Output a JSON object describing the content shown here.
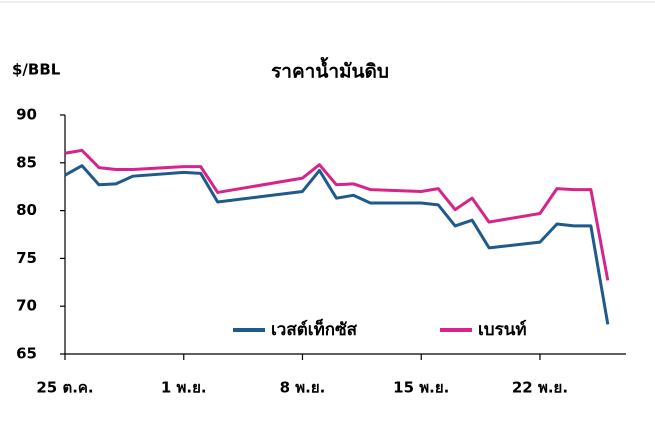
{
  "chart_data": {
    "type": "line",
    "title": "ราคาน้ำมันดิบ",
    "y_label": "$/BBL",
    "x": [
      0,
      1,
      2,
      3,
      4,
      7,
      8,
      9,
      14,
      15,
      16,
      17,
      18,
      21,
      22,
      23,
      24,
      25,
      28,
      29,
      30,
      31,
      32
    ],
    "xlim": [
      0,
      32.6
    ],
    "xticks": [
      {
        "value": 0,
        "label": "25 ต.ค."
      },
      {
        "value": 7,
        "label": "1 พ.ย."
      },
      {
        "value": 14,
        "label": "8 พ.ย."
      },
      {
        "value": 21,
        "label": "15 พ.ย."
      },
      {
        "value": 28,
        "label": "22 พ.ย."
      }
    ],
    "ylim": [
      65,
      90
    ],
    "yticks": [
      65,
      70,
      75,
      80,
      85,
      90
    ],
    "grid": false,
    "legend": "bottom",
    "series": [
      {
        "name": "เวสต์เท็กซัส",
        "color": "#1f5a8c",
        "values": [
          83.7,
          84.7,
          82.7,
          82.8,
          83.6,
          84.0,
          83.9,
          80.9,
          82.0,
          84.2,
          81.3,
          81.6,
          80.8,
          80.8,
          80.6,
          78.4,
          79.0,
          76.1,
          76.7,
          78.6,
          78.4,
          78.4,
          68.1
        ]
      },
      {
        "name": "เบรนท์",
        "color": "#d6248a",
        "values": [
          86.0,
          86.3,
          84.5,
          84.3,
          84.3,
          84.6,
          84.6,
          81.9,
          83.4,
          84.8,
          82.7,
          82.8,
          82.2,
          82.0,
          82.3,
          80.1,
          81.3,
          78.8,
          79.7,
          82.3,
          82.2,
          82.2,
          72.7
        ]
      }
    ]
  }
}
